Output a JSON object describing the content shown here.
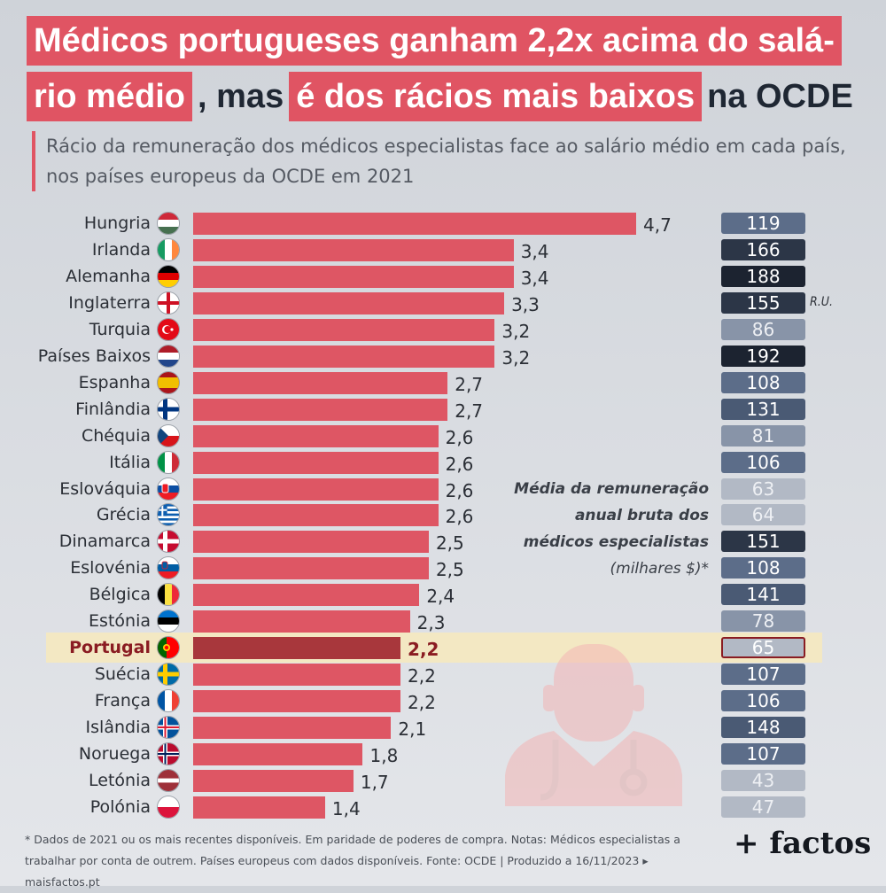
{
  "title": {
    "line1": "Médicos portugueses ganham 2,2x acima do salá-",
    "line2_part1": "rio médio",
    "line2_part2": ", mas",
    "line2_part3": "é dos rácios mais baixos",
    "line2_part4": "na OCDE"
  },
  "subtitle": "Rácio da remuneração dos médicos especialistas face ao salário médio em cada país, nos países europeus da OCDE em 2021",
  "annotation": {
    "line1": "Média da remuneração",
    "line2": "anual bruta dos",
    "line3": "médicos especialistas",
    "line4": "(milhares $)*"
  },
  "ru_note": "R.U.",
  "footnote": "* Dados de 2021 ou os mais recentes disponíveis. Em paridade de poderes de compra. Notas: Médicos especialistas a trabalhar por conta de outrem. Países europeus com dados disponíveis. Fonte: OCDE | Produzido a 16/11/2023 ▸ maisfactos.pt",
  "logo": "+ factos",
  "colors": {
    "accent": "#e05463",
    "bar": "#de5664",
    "highlight_bar": "#a8373c",
    "highlight_band": "#f3e8c3"
  },
  "chart_data": {
    "type": "bar",
    "orientation": "horizontal",
    "categories": [
      "Hungria",
      "Irlanda",
      "Alemanha",
      "Inglaterra",
      "Turquia",
      "Países Baixos",
      "Espanha",
      "Finlândia",
      "Chéquia",
      "Itália",
      "Eslováquia",
      "Grécia",
      "Dinamarca",
      "Eslovénia",
      "Bélgica",
      "Estónia",
      "Portugal",
      "Suécia",
      "França",
      "Islândia",
      "Noruega",
      "Letónia",
      "Polónia"
    ],
    "values": [
      4.7,
      3.4,
      3.4,
      3.3,
      3.2,
      3.2,
      2.7,
      2.7,
      2.6,
      2.6,
      2.6,
      2.6,
      2.5,
      2.5,
      2.4,
      2.3,
      2.2,
      2.2,
      2.2,
      2.1,
      1.8,
      1.7,
      1.4
    ],
    "value_labels": [
      "4,7",
      "3,4",
      "3,4",
      "3,3",
      "3,2",
      "3,2",
      "2,7",
      "2,7",
      "2,6",
      "2,6",
      "2,6",
      "2,6",
      "2,5",
      "2,5",
      "2,4",
      "2,3",
      "2,2",
      "2,2",
      "2,2",
      "2,1",
      "1,8",
      "1,7",
      "1,4"
    ],
    "highlight": "Portugal",
    "remuneration": [
      119,
      166,
      188,
      155,
      86,
      192,
      108,
      131,
      81,
      106,
      63,
      64,
      151,
      108,
      141,
      78,
      65,
      107,
      106,
      148,
      107,
      43,
      47
    ],
    "xlim": [
      0,
      5
    ]
  }
}
